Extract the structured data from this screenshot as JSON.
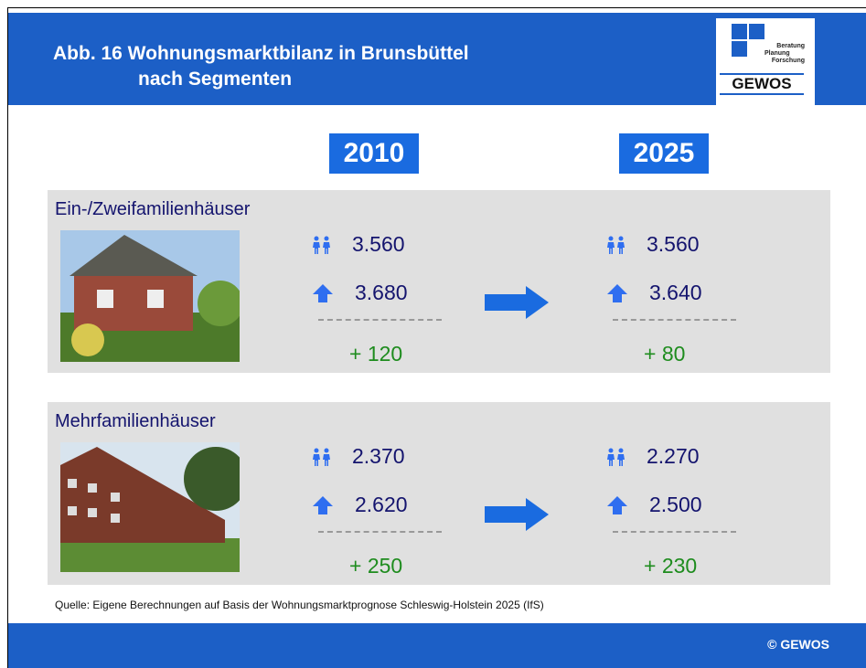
{
  "header": {
    "title_line1": "Abb. 16 Wohnungsmarktbilanz in Brunsbüttel",
    "title_line2": "nach Segmenten"
  },
  "logo": {
    "line1": "Beratung",
    "line2": "Planung",
    "line3": "Forschung",
    "name": "GEWOS"
  },
  "years": [
    "2010",
    "2025"
  ],
  "segments": [
    {
      "name": "Ein-/Zweifamilienhäuser",
      "columns": [
        {
          "households": "3.560",
          "dwellings": "3.680",
          "balance": "+ 120"
        },
        {
          "households": "3.560",
          "dwellings": "3.640",
          "balance": "+ 80"
        }
      ]
    },
    {
      "name": "Mehrfamilienhäuser",
      "columns": [
        {
          "households": "2.370",
          "dwellings": "2.620",
          "balance": "+ 250"
        },
        {
          "households": "2.270",
          "dwellings": "2.500",
          "balance": "+ 230"
        }
      ]
    }
  ],
  "source": "Quelle: Eigene Berechnungen auf Basis  der Wohnungsmarktprognose Schleswig-Holstein 2025 (IfS)",
  "footer": "© GEWOS"
}
